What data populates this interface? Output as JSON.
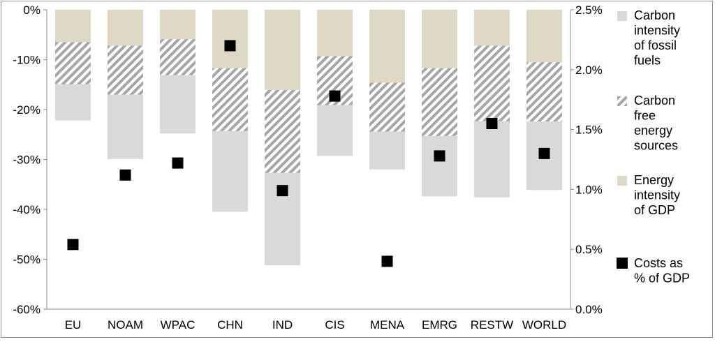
{
  "chart_data": {
    "type": "bar",
    "stacked": true,
    "categories": [
      "EU",
      "NOAM",
      "WPAC",
      "CHN",
      "IND",
      "CIS",
      "MENA",
      "EMRG",
      "RESTW",
      "WORLD"
    ],
    "series": [
      {
        "name": "Carbon intensity of fossil fuels",
        "axis": "left",
        "color": "#d9d9d9",
        "pattern": "solid",
        "values": [
          -7.3,
          -12.9,
          -11.7,
          -16.2,
          -18.5,
          -10.2,
          -7.6,
          -12.1,
          -15.3,
          -13.7
        ]
      },
      {
        "name": "Carbon free energy sources",
        "axis": "left",
        "color": "#a6a6a6",
        "pattern": "hatched",
        "values": [
          -8.4,
          -9.8,
          -7.2,
          -12.6,
          -16.6,
          -9.8,
          -9.8,
          -13.6,
          -15.1,
          -11.9
        ]
      },
      {
        "name": "Energy intensity of GDP",
        "axis": "left",
        "color": "#ddd9c4",
        "pattern": "solid",
        "values": [
          -6.5,
          -7.2,
          -5.9,
          -11.7,
          -16.1,
          -9.3,
          -14.6,
          -11.7,
          -7.2,
          -10.5
        ]
      },
      {
        "name": "Costs as % of GDP",
        "axis": "right",
        "type": "scatter",
        "color": "#000000",
        "values": [
          0.54,
          1.12,
          1.22,
          2.2,
          0.99,
          1.78,
          0.4,
          1.28,
          1.55,
          1.3
        ]
      }
    ],
    "yaxis_left": {
      "min": -60,
      "max": 0,
      "step": 10,
      "tick_labels": [
        "0%",
        "-10%",
        "-20%",
        "-30%",
        "-40%",
        "-50%",
        "-60%"
      ]
    },
    "yaxis_right": {
      "min": 0,
      "max": 2.5,
      "step": 0.5,
      "tick_labels": [
        "2.5%",
        "2.0%",
        "1.5%",
        "1.0%",
        "0.5%",
        "0.0%"
      ]
    },
    "title": "",
    "xlabel": "",
    "ylabel": "",
    "grid": false,
    "legend_position": "right",
    "legend": [
      {
        "lines": [
          "Carbon",
          "intensity",
          "of fossil",
          "fuels"
        ]
      },
      {
        "lines": [
          "Carbon",
          "free",
          "energy",
          "sources"
        ]
      },
      {
        "lines": [
          "Energy",
          "intensity",
          "of GDP"
        ]
      },
      {
        "lines": [
          "Costs as",
          "% of GDP"
        ]
      }
    ]
  }
}
